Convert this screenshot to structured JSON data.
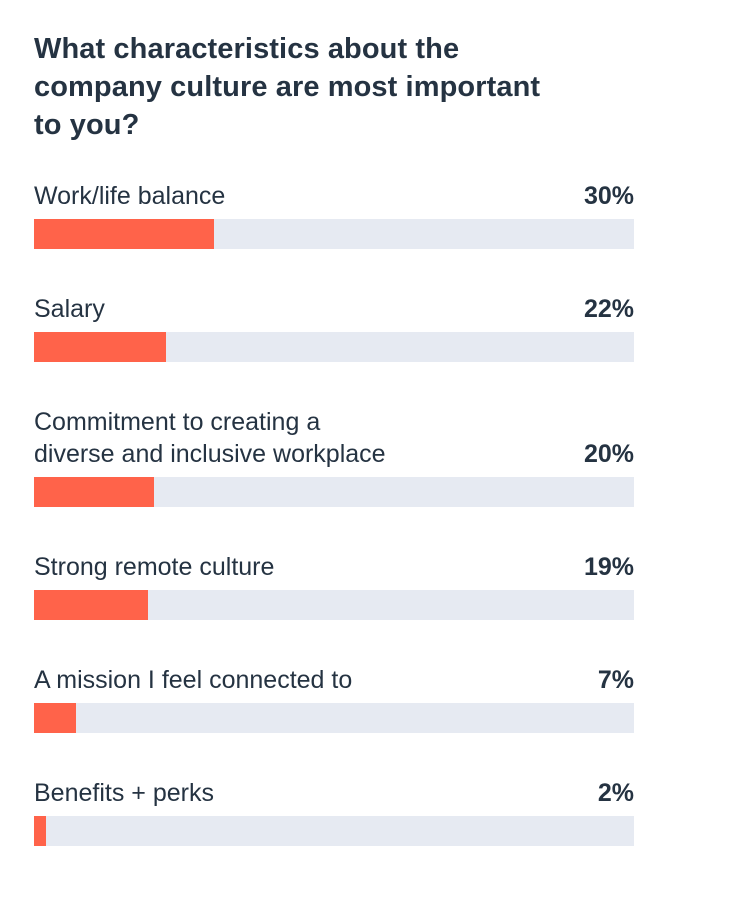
{
  "chart_data": {
    "type": "bar",
    "orientation": "horizontal",
    "title": "What characteristics about the\ncompany culture are most important\nto you?",
    "categories": [
      "Work/life balance",
      "Salary",
      "Commitment to creating a\ndiverse and inclusive workplace",
      "Strong remote culture",
      "A mission I feel connected to",
      "Benefits + perks"
    ],
    "values": [
      30,
      22,
      20,
      19,
      7,
      2
    ],
    "value_labels": [
      "30%",
      "22%",
      "20%",
      "19%",
      "7%",
      "2%"
    ],
    "xlim": [
      0,
      100
    ],
    "unit": "%",
    "grid": false,
    "legend": "none",
    "colors": {
      "bar": "#ff634a",
      "track": "#e6eaf2",
      "text": "#253342"
    }
  }
}
